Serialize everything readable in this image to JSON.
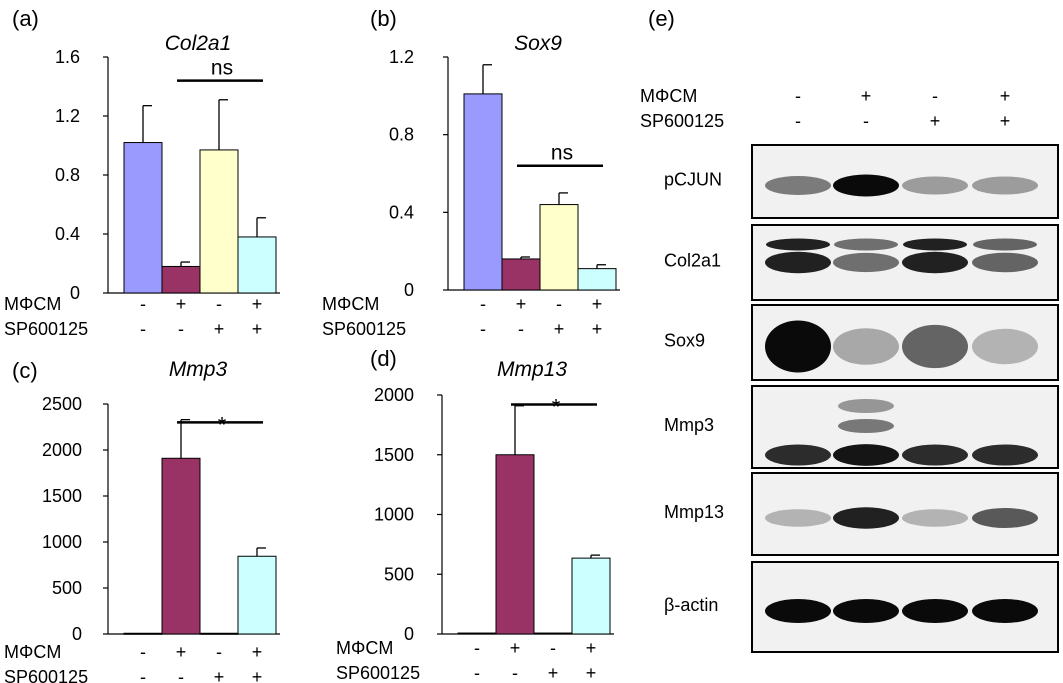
{
  "panel_letters": [
    "(a)",
    "(b)",
    "(c)",
    "(d)",
    "(e)"
  ],
  "row_labels": {
    "mphi_cm": "MΦCM",
    "sp600125": "SP600125"
  },
  "conditions": {
    "mphi_cm": [
      "-",
      "+",
      "-",
      "+"
    ],
    "sp600125": [
      "-",
      "-",
      "+",
      "+"
    ]
  },
  "colors": {
    "bar1": "#9a99fd",
    "bar2": "#993366",
    "bar3": "#ffffcc",
    "bar4": "#ccffff"
  },
  "chart_data": [
    {
      "type": "bar",
      "panel": "(a)",
      "title": "Col2a1",
      "categories": [
        "1",
        "2",
        "3",
        "4"
      ],
      "values": [
        1.02,
        0.18,
        0.97,
        0.38
      ],
      "errors": [
        0.25,
        0.03,
        0.34,
        0.13
      ],
      "ylim": [
        0,
        1.6
      ],
      "yticks": [
        "0",
        "0.4",
        "0.8",
        "1.2",
        "1.6"
      ],
      "sig": {
        "from": 1,
        "to": 3,
        "label": "ns",
        "value": 1.44
      }
    },
    {
      "type": "bar",
      "panel": "(b)",
      "title": "Sox9",
      "categories": [
        "1",
        "2",
        "3",
        "4"
      ],
      "values": [
        1.01,
        0.16,
        0.44,
        0.11
      ],
      "errors": [
        0.15,
        0.01,
        0.06,
        0.02
      ],
      "ylim": [
        0,
        1.2
      ],
      "yticks": [
        "0",
        "0.4",
        "0.8",
        "1.2"
      ],
      "sig": {
        "from": 1,
        "to": 3,
        "label": "ns",
        "value": 0.64
      }
    },
    {
      "type": "bar",
      "panel": "(c)",
      "title": "Mmp3",
      "categories": [
        "1",
        "2",
        "3",
        "4"
      ],
      "values": [
        8,
        1910,
        8,
        845
      ],
      "errors": [
        0,
        420,
        0,
        90
      ],
      "ylim": [
        0,
        2500
      ],
      "yticks": [
        "0",
        "500",
        "1000",
        "1500",
        "2000",
        "2500"
      ],
      "sig": {
        "from": 1,
        "to": 3,
        "label": "*",
        "value": 2300
      }
    },
    {
      "type": "bar",
      "panel": "(d)",
      "title": "Mmp13",
      "categories": [
        "1",
        "2",
        "3",
        "4"
      ],
      "values": [
        8,
        1500,
        8,
        635
      ],
      "errors": [
        0,
        410,
        0,
        25
      ],
      "ylim": [
        0,
        2000
      ],
      "yticks": [
        "0",
        "500",
        "1000",
        "1500",
        "2000"
      ],
      "sig": {
        "from": 1,
        "to": 3,
        "label": "*",
        "value": 1920
      }
    }
  ],
  "blot": {
    "header_labels": [
      "MΦCM",
      "SP600125"
    ],
    "lanes_mphi_cm": [
      "-",
      "+",
      "-",
      "+"
    ],
    "lanes_sp600125": [
      "-",
      "-",
      "+",
      "+"
    ],
    "rows": [
      {
        "label": "pCJUN",
        "intensity": [
          0.5,
          1.0,
          0.35,
          0.35
        ]
      },
      {
        "label": "Col2a1",
        "intensity": [
          0.9,
          0.55,
          0.9,
          0.6
        ]
      },
      {
        "label": "Sox9",
        "intensity": [
          1.0,
          0.3,
          0.6,
          0.25
        ]
      },
      {
        "label": "Mmp3",
        "intensity": [
          0.85,
          0.95,
          0.85,
          0.85
        ]
      },
      {
        "label": "Mmp13",
        "intensity": [
          0.25,
          0.9,
          0.25,
          0.65
        ]
      },
      {
        "label": "β-actin",
        "intensity": [
          1.0,
          1.0,
          1.0,
          1.0
        ]
      }
    ]
  }
}
